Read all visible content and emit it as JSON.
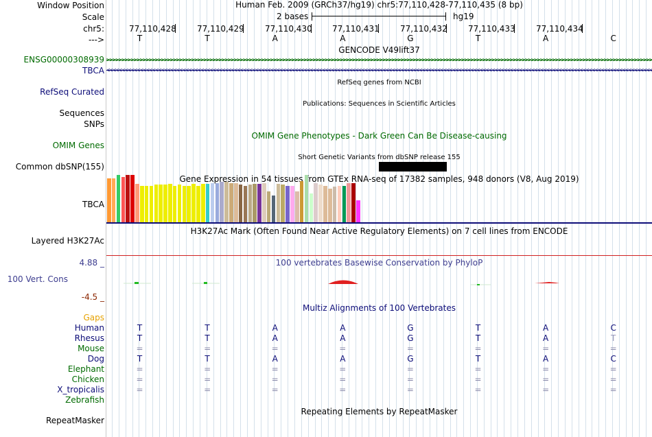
{
  "labels": {
    "window_position": "Window Position",
    "scale": "Scale",
    "chrom": "chr5:",
    "strand": "--->",
    "gencode_gene": "ENSG00000308939",
    "tbca_gene": "TBCA",
    "refseq": "RefSeq Curated",
    "sequences": "Sequences",
    "snps": "SNPs",
    "omim": "OMIM Genes",
    "dbsnp": "Common dbSNP(155)",
    "gtex": "TBCA",
    "h3k27ac": "Layered H3K27Ac",
    "cons_max": "4.88 _",
    "cons": "100 Vert. Cons",
    "cons_min": "-4.5 _",
    "gaps": "Gaps",
    "species": [
      "Human",
      "Rhesus",
      "Mouse",
      "Dog",
      "Elephant",
      "Chicken",
      "X_tropicalis",
      "Zebrafish"
    ],
    "repeat": "RepeatMasker"
  },
  "header": {
    "position": "Human Feb. 2009 (GRCh37/hg19)   chr5:77,110,428-77,110,435 (8 bp)",
    "scale_text": "2 bases",
    "assembly": "hg19",
    "coords": [
      "77,110,428",
      "77,110,429",
      "77,110,430",
      "77,110,431",
      "77,110,432",
      "77,110,433",
      "77,110,434"
    ],
    "bases": [
      "T",
      "T",
      "A",
      "A",
      "G",
      "T",
      "A",
      "C"
    ]
  },
  "track_titles": {
    "gencode": "GENCODE V49lift37",
    "refseq": "RefSeq genes from NCBI",
    "pubs": "Publications: Sequences in Scientific Articles",
    "omim": "OMIM Gene Phenotypes - Dark Green Can Be Disease-causing",
    "dbsnp": "Short Genetic Variants from dbSNP release 155",
    "gtex": "Gene Expression in 54 tissues from GTEx RNA-seq of 17382 samples, 948 donors (V8, Aug 2019)",
    "h3k27ac": "H3K27Ac Mark (Often Found Near Active Regulatory Elements) on 7 cell lines from ENCODE",
    "cons": "100 vertebrates Basewise Conservation by PhyloP",
    "multiz": "Multiz Alignments of 100 Vertebrates",
    "repeat": "Repeating Elements by RepeatMasker"
  },
  "alignment": [
    [
      "T",
      "T",
      "A",
      "A",
      "G",
      "T",
      "A",
      "C"
    ],
    [
      "T",
      "T",
      "A",
      "A",
      "G",
      "T",
      "A",
      "T"
    ],
    [
      "=",
      "=",
      "=",
      "=",
      "=",
      "=",
      "=",
      "="
    ],
    [
      "T",
      "T",
      "A",
      "A",
      "G",
      "T",
      "A",
      "C"
    ],
    [
      "=",
      "=",
      "=",
      "=",
      "=",
      "=",
      "=",
      "="
    ],
    [
      "=",
      "=",
      "=",
      "=",
      "=",
      "=",
      "=",
      "="
    ],
    [
      "=",
      "=",
      "=",
      "=",
      "=",
      "=",
      "=",
      "="
    ],
    [
      "",
      "",
      "",
      "",
      "",
      "",
      "",
      ""
    ]
  ],
  "gtex": {
    "values": [
      0.46,
      0.46,
      0.49,
      0.47,
      0.49,
      0.49,
      0.4,
      0.38,
      0.38,
      0.38,
      0.39,
      0.39,
      0.39,
      0.4,
      0.38,
      0.39,
      0.38,
      0.38,
      0.4,
      0.38,
      0.4,
      0.4,
      0.41,
      0.41,
      0.42,
      0.42,
      0.41,
      0.41,
      0.39,
      0.38,
      0.39,
      0.4,
      0.4,
      0.41,
      0.32,
      0.28,
      0.4,
      0.39,
      0.38,
      0.38,
      0.32,
      0.43,
      0.49,
      0.3,
      0.41,
      0.39,
      0.38,
      0.35,
      0.37,
      0.38,
      0.38,
      0.41,
      0.41,
      0.23
    ],
    "colors": [
      "#ff9933",
      "#ffaa55",
      "#33cc66",
      "#ff5555",
      "#bb1111",
      "#dd0000",
      "#ff9977",
      "#eeee00",
      "#eeee00",
      "#eeee00",
      "#eeee00",
      "#eeee00",
      "#eeee00",
      "#eeee00",
      "#eeee00",
      "#eeee00",
      "#eeee00",
      "#eeee00",
      "#eeee00",
      "#eeee00",
      "#eeee00",
      "#33cccc",
      "#bbccee",
      "#99aadd",
      "#aaaacc",
      "#ccbb99",
      "#ccaa77",
      "#ddbb99",
      "#886644",
      "#997755",
      "#bbaa88",
      "#aa9966",
      "#773399",
      "#ddccbb",
      "#bbaa77",
      "#556677",
      "#ccbb99",
      "#bbaa66",
      "#7766cc",
      "#ffaaee",
      "#ddbbaa",
      "#cc9933",
      "#aaddaa",
      "#ccffcc",
      "#ddcccc",
      "#eeddcc",
      "#ddbb99",
      "#ddbb99",
      "#ccbbaa",
      "#ffccbb",
      "#009955",
      "#ee9999",
      "#aa0000",
      "#ff33ff"
    ]
  },
  "colors": {
    "gencode": "#006a00",
    "tbca": "#0c0c78",
    "refseq": "#0c0c78",
    "omim": "#006a00",
    "cons_label": "#3d3d8f",
    "cons_min": "#8b2500",
    "gaps": "#e6a100",
    "human": "#0c0c78",
    "rhesus": "#0c0c78",
    "mouse": "#006a00",
    "dog": "#0c0c78",
    "elephant": "#006a00",
    "chicken": "#006a00",
    "xtrop": "#0c0c78",
    "zebrafish": "#006a00",
    "navy_line": "#0c0c78",
    "red_line": "#d02020"
  }
}
